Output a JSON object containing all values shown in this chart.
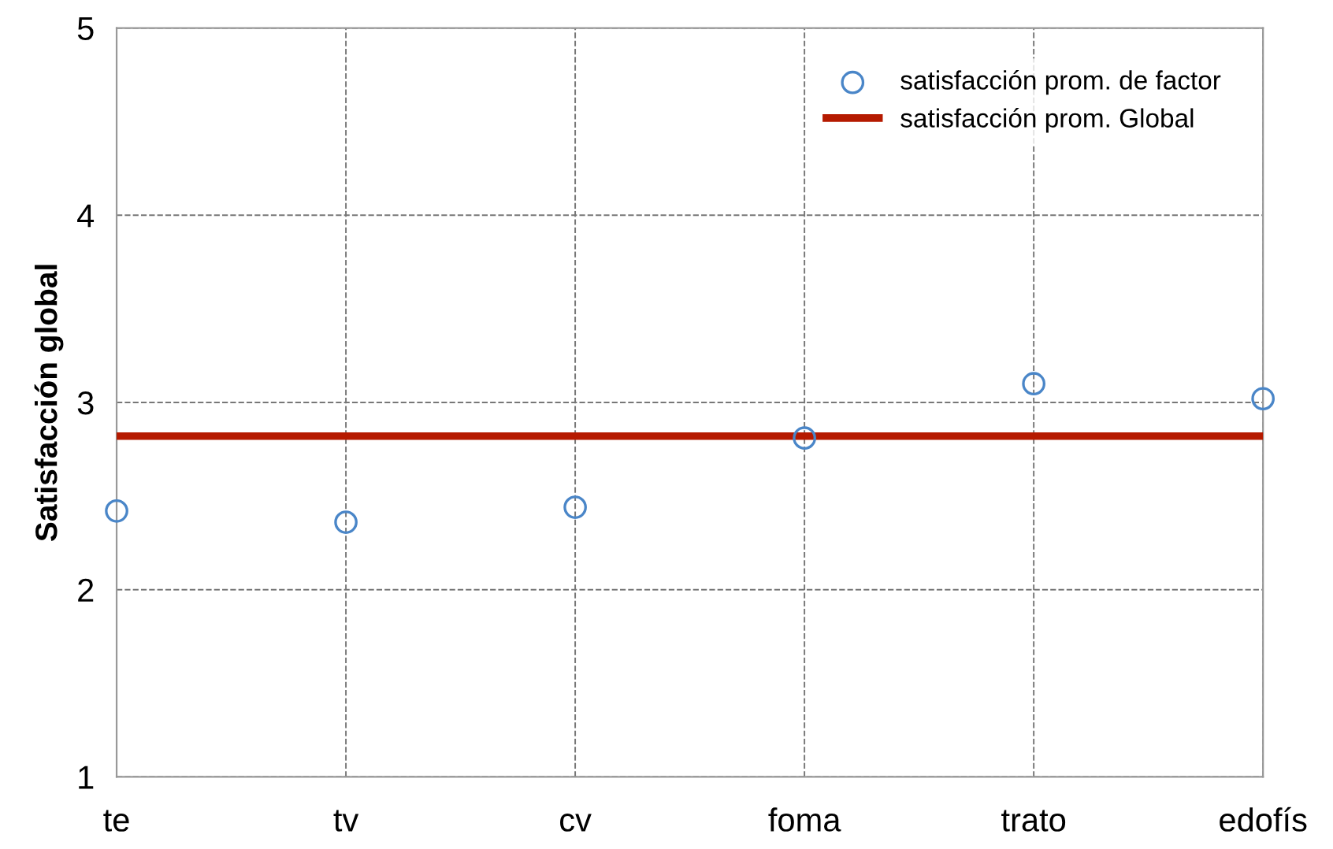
{
  "chart_data": {
    "type": "scatter",
    "ylabel": "Satisfacción global",
    "categories": [
      "te",
      "tv",
      "cv",
      "foma",
      "trato",
      "edofís"
    ],
    "series": [
      {
        "name": "satisfacción prom. de factor",
        "marker": "circle",
        "color": "#4a86c8",
        "values": [
          2.42,
          2.36,
          2.44,
          2.81,
          3.1,
          3.02
        ]
      },
      {
        "name": "satisfacción prom. Global",
        "type": "line",
        "marker": "none",
        "color": "#b51a00",
        "values": [
          2.82,
          2.82,
          2.82,
          2.82,
          2.82,
          2.82
        ]
      }
    ],
    "ylim": [
      1,
      5
    ],
    "yticks": [
      1,
      2,
      3,
      4,
      5
    ],
    "grid": true,
    "legend": "top right"
  }
}
